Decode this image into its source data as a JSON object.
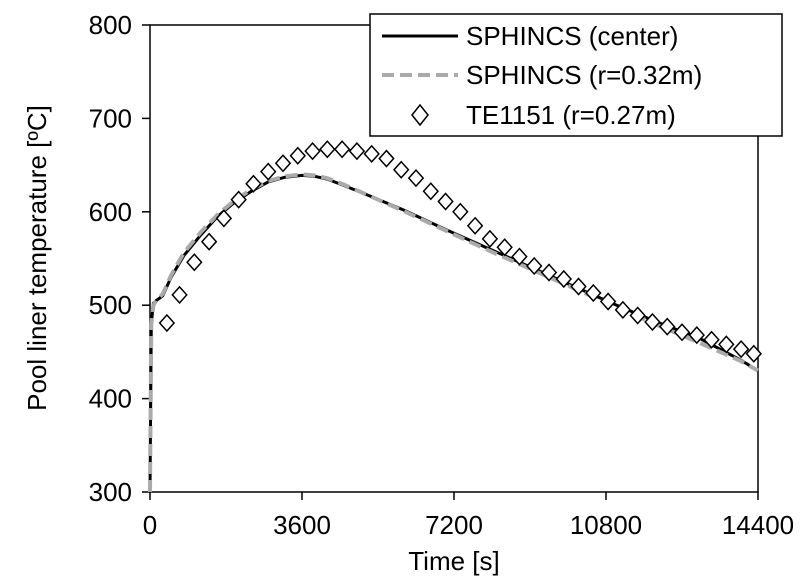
{
  "chart_data": {
    "type": "line",
    "title": "",
    "xlabel": "Time [s]",
    "ylabel": "Pool liner temperature [ºC]",
    "xlim": [
      0,
      14400
    ],
    "ylim": [
      300,
      800
    ],
    "xticks": [
      0,
      3600,
      7200,
      10800,
      14400
    ],
    "yticks": [
      300,
      400,
      500,
      600,
      700,
      800
    ],
    "xtick_labels": [
      "0",
      "3600",
      "7200",
      "10800",
      "14400"
    ],
    "ytick_labels": [
      "300",
      "400",
      "500",
      "600",
      "700",
      "800"
    ],
    "grid": false,
    "legend_position": "top-right",
    "series": [
      {
        "name": "SPHINCS (center)",
        "style": "solid-line",
        "color": "#000000",
        "x": [
          0,
          30,
          80,
          150,
          300,
          500,
          800,
          1200,
          1600,
          2000,
          2400,
          2800,
          3200,
          3600,
          3900,
          4200,
          4600,
          5200,
          6000,
          7000,
          8000,
          9000,
          10000,
          11000,
          12000,
          13000,
          14000,
          14400
        ],
        "y": [
          300,
          480,
          502,
          505,
          510,
          530,
          553,
          575,
          595,
          610,
          622,
          632,
          637,
          639,
          638,
          635,
          628,
          617,
          602,
          581,
          561,
          541,
          521,
          501,
          482,
          465,
          441,
          430
        ]
      },
      {
        "name": "SPHINCS (r=0.32m)",
        "style": "dashed-line",
        "color": "#aaaaaa",
        "x": [
          0,
          30,
          80,
          150,
          300,
          500,
          800,
          1200,
          1600,
          2000,
          2400,
          2800,
          3200,
          3600,
          3900,
          4200,
          4600,
          5200,
          6000,
          7000,
          8000,
          9000,
          10000,
          11000,
          12000,
          13000,
          14000,
          14400
        ],
        "y": [
          300,
          480,
          500,
          505,
          512,
          532,
          556,
          578,
          597,
          612,
          624,
          633,
          638,
          640,
          639,
          636,
          629,
          617,
          601,
          580,
          559,
          539,
          519,
          499,
          479,
          460,
          440,
          430
        ]
      },
      {
        "name": "TE1151 (r=0.27m)",
        "style": "diamond-markers",
        "color": "#000000",
        "x": [
          400,
          700,
          1050,
          1400,
          1750,
          2100,
          2450,
          2800,
          3150,
          3500,
          3850,
          4200,
          4550,
          4900,
          5250,
          5600,
          5950,
          6300,
          6650,
          7000,
          7350,
          7700,
          8050,
          8400,
          8750,
          9100,
          9450,
          9800,
          10150,
          10500,
          10850,
          11200,
          11550,
          11900,
          12250,
          12600,
          12950,
          13300,
          13650,
          14000,
          14300
        ],
        "y": [
          481,
          511,
          546,
          568,
          593,
          613,
          630,
          643,
          652,
          660,
          665,
          667,
          667,
          665,
          662,
          657,
          645,
          636,
          622,
          611,
          600,
          585,
          571,
          562,
          552,
          542,
          535,
          528,
          520,
          513,
          504,
          495,
          489,
          482,
          477,
          471,
          468,
          463,
          458,
          453,
          448
        ]
      }
    ]
  }
}
